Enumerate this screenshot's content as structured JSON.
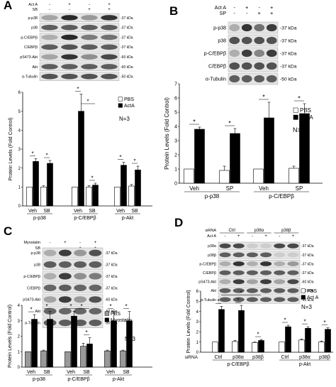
{
  "panels": [
    {
      "label": "A",
      "conditions": [
        {
          "name": "Act A",
          "marks": [
            "-",
            "+",
            "-",
            "+"
          ]
        },
        {
          "name": "SB",
          "marks": [
            "-",
            "-",
            "+",
            "+"
          ]
        }
      ],
      "rows": [
        {
          "name": "p-p38",
          "kda": "-37 kDa"
        },
        {
          "name": "p38",
          "kda": "-37 kDa"
        },
        {
          "name": "p-C/EBPβ",
          "kda": "-37 kDa"
        },
        {
          "name": "C/EBPβ",
          "kda": "-37 kDa"
        },
        {
          "name": "pS473-Akt",
          "kda": "-60 kDa"
        },
        {
          "name": "Akt",
          "kda": "-60 kDa"
        },
        {
          "name": "α-Tubulin",
          "kda": "-50 kDa"
        }
      ],
      "band_intensity": [
        [
          0.35,
          0.95,
          0.4,
          0.9
        ],
        [
          0.7,
          0.7,
          0.7,
          0.7
        ],
        [
          0.3,
          0.95,
          0.55,
          0.6
        ],
        [
          0.7,
          0.75,
          0.7,
          0.7
        ],
        [
          0.35,
          0.9,
          0.45,
          0.8
        ],
        [
          0.7,
          0.7,
          0.7,
          0.7
        ],
        [
          0.75,
          0.75,
          0.75,
          0.75
        ]
      ],
      "n_label": "N=3"
    },
    {
      "label": "B",
      "conditions": [
        {
          "name": "Act A",
          "marks": [
            "-",
            "+",
            "-",
            "+"
          ]
        },
        {
          "name": "SP",
          "marks": [
            "-",
            "-",
            "+",
            "+"
          ]
        }
      ],
      "rows": [
        {
          "name": "p-p38",
          "kda": "-37 kDa"
        },
        {
          "name": "p38",
          "kda": "-37 kDa"
        },
        {
          "name": "p-C/EBPβ",
          "kda": "-37 kDa"
        },
        {
          "name": "C/EBPβ",
          "kda": "-37 kDa"
        },
        {
          "name": "α-Tubulin",
          "kda": "-50 kDa"
        }
      ],
      "band_intensity": [
        [
          0.3,
          0.9,
          0.6,
          0.85
        ],
        [
          0.75,
          0.75,
          0.75,
          0.75
        ],
        [
          0.3,
          0.85,
          0.5,
          0.85
        ],
        [
          0.75,
          0.75,
          0.75,
          0.75
        ],
        [
          0.7,
          0.7,
          0.7,
          0.7
        ]
      ],
      "n_label": "N=3"
    },
    {
      "label": "C",
      "conditions": [
        {
          "name": "Myostatin",
          "marks": [
            "-",
            "+",
            "-",
            "+"
          ]
        },
        {
          "name": "SB",
          "marks": [
            "-",
            "-",
            "+",
            "+"
          ]
        }
      ],
      "rows": [
        {
          "name": "p-p38",
          "kda": "-37 kDa"
        },
        {
          "name": "p38",
          "kda": "-37 kDa"
        },
        {
          "name": "p-C/EBPβ",
          "kda": "-37 kDa"
        },
        {
          "name": "C/EBPβ",
          "kda": "-37 kDa"
        },
        {
          "name": "pS473-Akt",
          "kda": "-60 kDa"
        },
        {
          "name": "Akt",
          "kda": "-60 kDa"
        },
        {
          "name": "α-Tubulin",
          "kda": "-50 kDa"
        }
      ],
      "band_intensity": [
        [
          0.3,
          0.85,
          0.4,
          0.75
        ],
        [
          0.7,
          0.7,
          0.7,
          0.7
        ],
        [
          0.3,
          0.85,
          0.45,
          0.55
        ],
        [
          0.65,
          0.7,
          0.65,
          0.65
        ],
        [
          0.35,
          0.85,
          0.4,
          0.75
        ],
        [
          0.65,
          0.65,
          0.65,
          0.65
        ],
        [
          0.7,
          0.7,
          0.7,
          0.7
        ]
      ],
      "n_label": "N=3"
    },
    {
      "label": "D",
      "conditions": [
        {
          "name": "Act A",
          "marks": [
            "-",
            "+",
            "-",
            "+",
            "-",
            "+"
          ]
        }
      ],
      "sirna_label": "siRNA",
      "sirna_groups": [
        "Ctrl",
        "p38α",
        "p38β"
      ],
      "rows": [
        {
          "name": "p38α",
          "kda": "-37 kDa"
        },
        {
          "name": "p38β",
          "kda": "-37 kDa"
        },
        {
          "name": "p-C/EBPβ",
          "kda": "-37 kDa"
        },
        {
          "name": "C/EBPβ",
          "kda": "-37 kDa"
        },
        {
          "name": "pS473-Akt",
          "kda": "-60 kDa"
        },
        {
          "name": "Akt",
          "kda": "-60 kDa"
        },
        {
          "name": "α-Tubulin",
          "kda": "-50 kDa"
        }
      ],
      "band_intensity": [
        [
          0.8,
          0.8,
          0.15,
          0.15,
          0.8,
          0.8
        ],
        [
          0.7,
          0.7,
          0.7,
          0.7,
          0.15,
          0.15
        ],
        [
          0.3,
          0.9,
          0.3,
          0.9,
          0.3,
          0.4
        ],
        [
          0.7,
          0.7,
          0.7,
          0.7,
          0.7,
          0.7
        ],
        [
          0.3,
          0.85,
          0.35,
          0.85,
          0.35,
          0.8
        ],
        [
          0.7,
          0.7,
          0.7,
          0.7,
          0.7,
          0.7
        ],
        [
          0.7,
          0.7,
          0.7,
          0.7,
          0.7,
          0.7
        ]
      ],
      "n_label": "N=3"
    }
  ],
  "chart_data": [
    {
      "type": "bar",
      "panel": "A",
      "ylabel": "Protein Levels (Fold Control)",
      "ylim": [
        0,
        6
      ],
      "yticks": [
        0,
        1,
        2,
        3,
        4,
        5,
        6
      ],
      "categories": [
        "Veh",
        "SB",
        "Veh",
        "SB",
        "Veh",
        "SB"
      ],
      "groups": [
        "p-p38",
        "p-C/EBPβ",
        "p-Akt"
      ],
      "series": [
        {
          "name": "PBS",
          "color": "#ffffff",
          "values": [
            1,
            1,
            1,
            1,
            1,
            1.05
          ],
          "errors": [
            0,
            0.06,
            0,
            0.08,
            0,
            0.08
          ]
        },
        {
          "name": "ActA",
          "color": "#000000",
          "values": [
            2.35,
            2.25,
            5.0,
            1.1,
            2.15,
            1.9
          ],
          "errors": [
            0.15,
            0.15,
            0.9,
            0.1,
            0.15,
            0.2
          ]
        }
      ],
      "legend_position": "top-right",
      "n_label": "N=3"
    },
    {
      "type": "bar",
      "panel": "B",
      "ylabel": "Protein Levels (Fold Control)",
      "ylim": [
        0,
        7
      ],
      "yticks": [
        0,
        1,
        2,
        3,
        4,
        5,
        6,
        7
      ],
      "categories": [
        "Veh",
        "SP",
        "Veh",
        "SP"
      ],
      "groups": [
        "p-p38",
        "p-C/EBPβ"
      ],
      "series": [
        {
          "name": "PBS",
          "color": "#ffffff",
          "values": [
            1,
            0.9,
            1,
            1.05
          ],
          "errors": [
            0,
            0.3,
            0,
            0.15
          ]
        },
        {
          "name": "Act A",
          "color": "#000000",
          "values": [
            3.8,
            3.5,
            4.6,
            4.9
          ],
          "errors": [
            0.15,
            0.35,
            1.1,
            0.7
          ]
        }
      ],
      "legend_position": "top-right",
      "n_label": "N=3"
    },
    {
      "type": "bar",
      "panel": "C",
      "ylabel": "Protein Levels (Fold Control)",
      "ylim": [
        0,
        4
      ],
      "yticks": [
        0,
        1,
        2,
        3,
        4
      ],
      "categories": [
        "Veh",
        "SB",
        "Veh",
        "SB",
        "Veh",
        "SB"
      ],
      "groups": [
        "p-p38",
        "p-C/EBPβ",
        "p-Akt"
      ],
      "series": [
        {
          "name": "PBS",
          "color": "#999999",
          "values": [
            1,
            1.05,
            1,
            1.35,
            1.05,
            1.05
          ],
          "errors": [
            0,
            0.05,
            0,
            0.2,
            0.05,
            0.05
          ]
        },
        {
          "name": "Myostatin",
          "color": "#000000",
          "values": [
            3.1,
            3.1,
            3.3,
            1.5,
            3.0,
            3.0
          ],
          "errors": [
            0.3,
            0.5,
            0.3,
            0.4,
            0.6,
            0.6
          ]
        }
      ],
      "legend_position": "top-right",
      "n_label": "N=3"
    },
    {
      "type": "bar",
      "panel": "D",
      "ylabel": "Protein Levels (Fold Control)",
      "ylim": [
        0,
        6
      ],
      "yticks": [
        0,
        1,
        2,
        3,
        4,
        5,
        6
      ],
      "xlabel_prefix": "siRNA",
      "categories": [
        "Ctrl",
        "p38α",
        "p38β",
        "Ctrl",
        "p38α",
        "p38β"
      ],
      "groups": [
        "p-C/EBPβ",
        "p-Akt"
      ],
      "series": [
        {
          "name": "PBS",
          "color": "#ffffff",
          "values": [
            1,
            1.05,
            0.95,
            1,
            1.2,
            1.0
          ],
          "errors": [
            0,
            0.1,
            0.05,
            0,
            0.1,
            0.1
          ]
        },
        {
          "name": "Act A",
          "color": "#000000",
          "values": [
            4.2,
            4.1,
            1.15,
            2.5,
            2.35,
            2.25
          ],
          "errors": [
            0.3,
            0.5,
            0.1,
            0.15,
            0.15,
            0.15
          ]
        }
      ],
      "legend_position": "top-right",
      "n_label": "N=3"
    }
  ]
}
